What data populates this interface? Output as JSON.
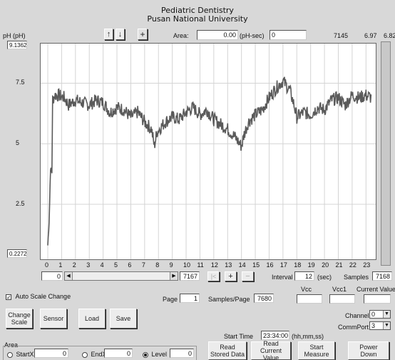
{
  "header": {
    "title_line1": "Pediatric Dentistry",
    "title_line2": "Pusan National University"
  },
  "top": {
    "unit_label": "pH (pH)",
    "area_label": "Area:",
    "area_value": "0.00",
    "area_unit": "(pH-sec)",
    "area_field": "0",
    "readout_samples": "7145",
    "readout_ph1": "6.97",
    "readout_ph2": "6.82"
  },
  "y_axis": {
    "top_value": "9.1362",
    "bottom_value": "0.2272"
  },
  "chart_data": {
    "type": "line",
    "ylabel": "pH (pH)",
    "ylim": [
      0.2272,
      9.1362
    ],
    "xlim": [
      0,
      23.5
    ],
    "x_ticks": [
      "0",
      "1",
      "2",
      "3",
      "4",
      "5",
      "6",
      "7",
      "8",
      "9",
      "10",
      "11",
      "12",
      "13",
      "14",
      "15",
      "16",
      "17",
      "18",
      "19",
      "20",
      "21",
      "22",
      "23"
    ],
    "y_ticks": [
      "7.5",
      "5",
      "2.5"
    ],
    "y_tick_values": [
      7.5,
      5,
      2.5
    ],
    "series": [
      {
        "values": [
          [
            0,
            0.8
          ],
          [
            0.1,
            1.8
          ],
          [
            0.2,
            4.0
          ],
          [
            0.3,
            3.8
          ],
          [
            0.35,
            6.8
          ],
          [
            0.5,
            7.0
          ],
          [
            0.8,
            7.0
          ],
          [
            1.2,
            6.9
          ],
          [
            1.5,
            6.6
          ],
          [
            2.0,
            6.8
          ],
          [
            2.5,
            6.7
          ],
          [
            3.0,
            6.6
          ],
          [
            3.5,
            6.8
          ],
          [
            4.0,
            6.7
          ],
          [
            4.5,
            6.3
          ],
          [
            5.0,
            6.5
          ],
          [
            5.5,
            6.4
          ],
          [
            6.0,
            6.1
          ],
          [
            6.5,
            6.3
          ],
          [
            7.0,
            5.9
          ],
          [
            7.5,
            5.6
          ],
          [
            7.7,
            4.9
          ],
          [
            7.9,
            5.5
          ],
          [
            8.5,
            5.9
          ],
          [
            9.0,
            6.1
          ],
          [
            9.5,
            6.0
          ],
          [
            10.0,
            6.3
          ],
          [
            10.5,
            6.5
          ],
          [
            11.0,
            6.2
          ],
          [
            11.5,
            6.4
          ],
          [
            12.0,
            6.0
          ],
          [
            12.5,
            5.8
          ],
          [
            13.0,
            5.6
          ],
          [
            13.5,
            5.3
          ],
          [
            14.0,
            4.9
          ],
          [
            14.2,
            5.4
          ],
          [
            14.5,
            5.9
          ],
          [
            15.0,
            6.2
          ],
          [
            15.5,
            6.4
          ],
          [
            16.0,
            6.9
          ],
          [
            16.5,
            7.3
          ],
          [
            17.0,
            7.6
          ],
          [
            17.5,
            7.2
          ],
          [
            17.8,
            6.6
          ],
          [
            18.0,
            6.1
          ],
          [
            18.5,
            6.3
          ],
          [
            19.0,
            6.2
          ],
          [
            19.5,
            6.5
          ],
          [
            20.0,
            6.4
          ],
          [
            20.5,
            6.8
          ],
          [
            21.0,
            6.9
          ],
          [
            21.5,
            6.6
          ],
          [
            22.0,
            7.0
          ],
          [
            22.5,
            6.9
          ],
          [
            23.0,
            7.0
          ],
          [
            23.4,
            6.9
          ]
        ]
      }
    ]
  },
  "scrollbar": {
    "left_value": "0",
    "right_value": "7167"
  },
  "nav": {
    "first": "|<",
    "plus": "+",
    "minus": "−"
  },
  "interval": {
    "label": "Interval",
    "value": "12",
    "unit": "(sec)"
  },
  "samples": {
    "label": "Samples",
    "value": "7168"
  },
  "auto_scale": {
    "label": "Auto Scale Change",
    "checked": true
  },
  "page": {
    "label": "Page",
    "value": "1"
  },
  "samples_per_page": {
    "label": "Samples/Page",
    "value": "7680"
  },
  "vcc": {
    "label": "Vcc",
    "value": ""
  },
  "vcc1": {
    "label": "Vcc1",
    "value": ""
  },
  "current_value": {
    "label": "Current Value",
    "value": ""
  },
  "buttons": {
    "change_scale_1": "Change",
    "change_scale_2": "Scale",
    "sensor": "Sensor",
    "load": "Load",
    "save": "Save",
    "read_stored_1": "Read",
    "read_stored_2": "Stored Data",
    "read_current_1": "Read",
    "read_current_2": "Current Value",
    "start_measure_1": "Start",
    "start_measure_2": "Measure",
    "power_down_1": "Power",
    "power_down_2": "Down"
  },
  "channel": {
    "label": "Channel",
    "value": "0"
  },
  "commport": {
    "label": "CommPort",
    "value": "3"
  },
  "start_time": {
    "label": "Start Time",
    "value": "23:34:00",
    "format": "(hh,mm,ss)"
  },
  "area_group": {
    "label": "Area",
    "startx_label": "StartX",
    "startx_value": "0",
    "endx_label": "EndX",
    "endx_value": "0",
    "level_label": "Level",
    "level_value": "0",
    "selected": "Level"
  }
}
